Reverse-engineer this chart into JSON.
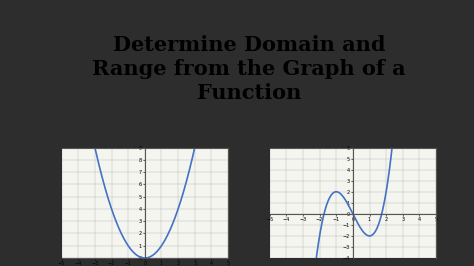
{
  "title_line1": "Determine Domain and",
  "title_line2": "Range from the Graph of a",
  "title_line3": "Function",
  "title_fontsize": 15,
  "title_fontweight": "bold",
  "background_color": "#2d2d2d",
  "graph_bg": "#f5f5f0",
  "graph1": {
    "xlim": [
      -5,
      5
    ],
    "ylim": [
      0,
      9
    ],
    "curve_color": "#4472C4",
    "curve_lw": 1.2,
    "grid_color": "#bbbbbb",
    "border_color": "#555555"
  },
  "graph2": {
    "xlim": [
      -5,
      5
    ],
    "ylim": [
      -4,
      6
    ],
    "curve_color": "#4472C4",
    "curve_lw": 1.2,
    "grid_color": "#bbbbbb",
    "border_color": "#555555"
  }
}
